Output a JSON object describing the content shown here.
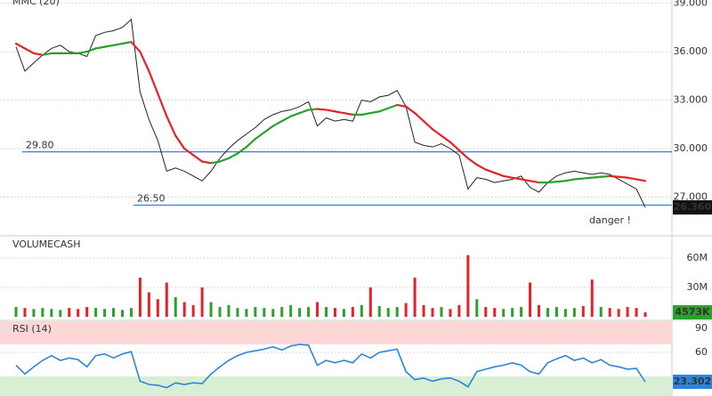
{
  "chart_data": [
    {
      "type": "line",
      "title": "MMC (20)",
      "annotation": "danger !",
      "ylim": [
        24.6,
        39.2
      ],
      "yticks": [
        {
          "value": 39,
          "label": "39.000"
        },
        {
          "value": 36,
          "label": "36.000"
        },
        {
          "value": 33,
          "label": "33.000"
        },
        {
          "value": 30,
          "label": "30.000"
        },
        {
          "value": 27,
          "label": "27.000"
        }
      ],
      "hlines": [
        {
          "value": 29.8,
          "label": "29.80"
        },
        {
          "value": 26.5,
          "label": "26.50"
        }
      ],
      "last_label": "26.360",
      "up_color": "#2ca02c",
      "down_color": "#e8202a",
      "series": [
        {
          "color": "#222",
          "values": [
            36.3,
            34.8,
            35.3,
            35.8,
            36.2,
            36.4,
            36.0,
            35.9,
            35.7,
            37.0,
            37.2,
            37.3,
            37.5,
            38.0,
            33.5,
            31.8,
            30.5,
            28.6,
            28.8,
            28.6,
            28.3,
            28.0,
            28.6,
            29.4,
            30.0,
            30.5,
            30.9,
            31.3,
            31.8,
            32.1,
            32.3,
            32.4,
            32.6,
            32.9,
            31.4,
            31.9,
            31.7,
            31.8,
            31.7,
            33.0,
            32.9,
            33.2,
            33.3,
            33.6,
            32.6,
            30.4,
            30.2,
            30.1,
            30.3,
            30.0,
            29.6,
            27.5,
            28.2,
            28.1,
            27.9,
            28.0,
            28.1,
            28.3,
            27.6,
            27.3,
            27.9,
            28.3,
            28.5,
            28.6,
            28.5,
            28.4,
            28.5,
            28.4,
            28.1,
            27.8,
            27.5,
            26.36
          ]
        },
        {
          "values": [
            36.5,
            36.2,
            35.9,
            35.8,
            35.9,
            35.9,
            35.9,
            35.9,
            36.0,
            36.2,
            36.3,
            36.4,
            36.5,
            36.6,
            36.0,
            34.8,
            33.4,
            32.0,
            30.8,
            30.0,
            29.6,
            29.2,
            29.1,
            29.2,
            29.4,
            29.7,
            30.1,
            30.6,
            31.0,
            31.4,
            31.7,
            32.0,
            32.2,
            32.4,
            32.45,
            32.4,
            32.3,
            32.2,
            32.1,
            32.1,
            32.2,
            32.3,
            32.5,
            32.7,
            32.6,
            32.2,
            31.7,
            31.2,
            30.8,
            30.4,
            29.9,
            29.4,
            29.0,
            28.7,
            28.5,
            28.3,
            28.2,
            28.1,
            28.0,
            27.9,
            27.9,
            27.95,
            28.0,
            28.1,
            28.15,
            28.2,
            28.25,
            28.3,
            28.25,
            28.2,
            28.1,
            28.0
          ]
        }
      ]
    },
    {
      "type": "bar",
      "title": "VOLUMECASH",
      "ylim": [
        0,
        82.7
      ],
      "yticks": [
        {
          "value": 60,
          "label": "60M"
        },
        {
          "value": 30,
          "label": "30M"
        }
      ],
      "last_label": "4573K",
      "up_color": "#2ca02c",
      "down_color": "#e8202a",
      "values": [
        10,
        9,
        8,
        9,
        8,
        7,
        9,
        8,
        10,
        9,
        8,
        9,
        7,
        9,
        40,
        25,
        18,
        35,
        20,
        15,
        12,
        30,
        15,
        10,
        12,
        9,
        8,
        10,
        9,
        8,
        10,
        12,
        9,
        10,
        15,
        10,
        9,
        8,
        10,
        12,
        30,
        11,
        9,
        10,
        14,
        40,
        12,
        9,
        10,
        8,
        12,
        63,
        18,
        10,
        9,
        8,
        9,
        10,
        35,
        12,
        9,
        10,
        8,
        9,
        11,
        38,
        10,
        9,
        8,
        10,
        9,
        4.573
      ]
    },
    {
      "type": "line",
      "title": "RSI (14)",
      "ylim": [
        0,
        100
      ],
      "yticks": [
        90,
        60
      ],
      "last_label": "23.302",
      "bands": [
        {
          "from": 70,
          "to": 100,
          "color": "#fdd6d6"
        },
        {
          "from": 0,
          "to": 30,
          "color": "#d8efd6"
        }
      ],
      "series": [
        {
          "color": "#2b86d9",
          "values": [
            44,
            33,
            42,
            50,
            56,
            50,
            53,
            51,
            42,
            56,
            58,
            53,
            58,
            61,
            24,
            20,
            19,
            16,
            22,
            20,
            22,
            21,
            33,
            42,
            50,
            56,
            60,
            62,
            64,
            67,
            63,
            68,
            70,
            69,
            44,
            50,
            47,
            50,
            47,
            58,
            53,
            60,
            62,
            64,
            36,
            26,
            28,
            24,
            27,
            28,
            24,
            17,
            36,
            39,
            42,
            44,
            47,
            44,
            36,
            33,
            47,
            52,
            56,
            50,
            53,
            47,
            51,
            44,
            42,
            39,
            40,
            23.302
          ]
        }
      ]
    }
  ]
}
